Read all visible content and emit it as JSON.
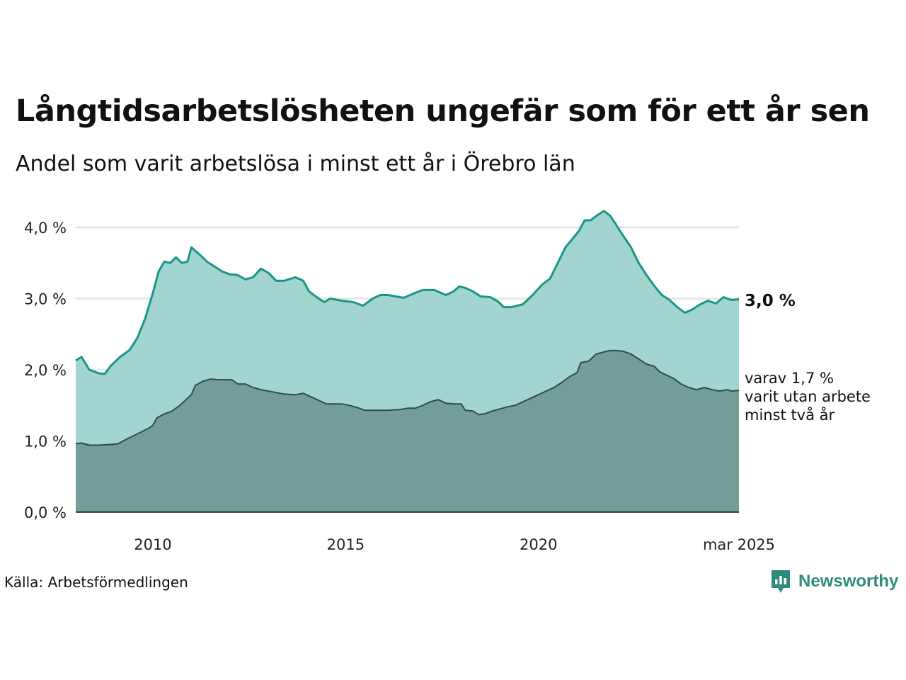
{
  "title": "Långtidsarbetslösheten ungefär som för ett år sen",
  "subtitle": "Andel som varit arbetslösa i minst ett år i Örebro län",
  "source": "Källa: Arbetsförmedlingen",
  "brand": {
    "name": "Newsworthy",
    "icon": "newsworthy-logo-icon",
    "color": "#2e8a7c"
  },
  "colors": {
    "total_line": "#1a9689",
    "total_fill": "#a2d5cf",
    "twoyear_line": "#2c4f49",
    "twoyear_fill": "#729e97",
    "grid": "#e3e3e3"
  },
  "chart_data": {
    "type": "area",
    "x_unit": "year",
    "ylim": [
      0,
      4.0
    ],
    "yticks": [
      "0,0 %",
      "1,0 %",
      "2,0 %",
      "3,0 %",
      "4,0 %"
    ],
    "xticks": [
      "2010",
      "2015",
      "2020",
      "mar 2025"
    ],
    "end_label": "3,0 %",
    "annotation": [
      "varav 1,7 %",
      "varit utan arbete",
      "minst två år"
    ],
    "grid": true,
    "series": [
      {
        "values": [
          [
            2008.0,
            2.13
          ],
          [
            2008.15,
            2.18
          ],
          [
            2008.35,
            2.0
          ],
          [
            2008.6,
            1.95
          ],
          [
            2008.75,
            1.94
          ],
          [
            2008.9,
            2.05
          ],
          [
            2009.15,
            2.18
          ],
          [
            2009.4,
            2.28
          ],
          [
            2009.6,
            2.45
          ],
          [
            2009.8,
            2.72
          ],
          [
            2010.0,
            3.08
          ],
          [
            2010.15,
            3.38
          ],
          [
            2010.3,
            3.52
          ],
          [
            2010.45,
            3.5
          ],
          [
            2010.6,
            3.58
          ],
          [
            2010.75,
            3.5
          ],
          [
            2010.9,
            3.52
          ],
          [
            2011.0,
            3.72
          ],
          [
            2011.25,
            3.6
          ],
          [
            2011.4,
            3.52
          ],
          [
            2011.6,
            3.45
          ],
          [
            2011.8,
            3.38
          ],
          [
            2012.0,
            3.34
          ],
          [
            2012.2,
            3.33
          ],
          [
            2012.4,
            3.27
          ],
          [
            2012.6,
            3.3
          ],
          [
            2012.8,
            3.42
          ],
          [
            2013.0,
            3.36
          ],
          [
            2013.2,
            3.25
          ],
          [
            2013.4,
            3.25
          ],
          [
            2013.7,
            3.3
          ],
          [
            2013.9,
            3.25
          ],
          [
            2014.05,
            3.1
          ],
          [
            2014.3,
            3.0
          ],
          [
            2014.45,
            2.95
          ],
          [
            2014.6,
            3.0
          ],
          [
            2014.9,
            2.97
          ],
          [
            2015.2,
            2.95
          ],
          [
            2015.45,
            2.9
          ],
          [
            2015.7,
            3.0
          ],
          [
            2015.9,
            3.05
          ],
          [
            2016.1,
            3.05
          ],
          [
            2016.3,
            3.03
          ],
          [
            2016.5,
            3.01
          ],
          [
            2016.8,
            3.08
          ],
          [
            2017.0,
            3.12
          ],
          [
            2017.3,
            3.12
          ],
          [
            2017.6,
            3.05
          ],
          [
            2017.8,
            3.1
          ],
          [
            2017.95,
            3.17
          ],
          [
            2018.1,
            3.15
          ],
          [
            2018.3,
            3.1
          ],
          [
            2018.5,
            3.03
          ],
          [
            2018.75,
            3.02
          ],
          [
            2018.95,
            2.96
          ],
          [
            2019.1,
            2.88
          ],
          [
            2019.3,
            2.88
          ],
          [
            2019.6,
            2.92
          ],
          [
            2019.85,
            3.05
          ],
          [
            2020.1,
            3.2
          ],
          [
            2020.3,
            3.28
          ],
          [
            2020.5,
            3.5
          ],
          [
            2020.7,
            3.72
          ],
          [
            2020.9,
            3.85
          ],
          [
            2021.05,
            3.95
          ],
          [
            2021.2,
            4.1
          ],
          [
            2021.35,
            4.1
          ],
          [
            2021.55,
            4.18
          ],
          [
            2021.7,
            4.23
          ],
          [
            2021.85,
            4.17
          ],
          [
            2022.0,
            4.05
          ],
          [
            2022.15,
            3.92
          ],
          [
            2022.4,
            3.72
          ],
          [
            2022.6,
            3.5
          ],
          [
            2022.8,
            3.33
          ],
          [
            2023.0,
            3.18
          ],
          [
            2023.2,
            3.05
          ],
          [
            2023.4,
            2.98
          ],
          [
            2023.6,
            2.88
          ],
          [
            2023.8,
            2.8
          ],
          [
            2024.0,
            2.85
          ],
          [
            2024.2,
            2.92
          ],
          [
            2024.4,
            2.97
          ],
          [
            2024.6,
            2.93
          ],
          [
            2024.8,
            3.02
          ],
          [
            2025.0,
            2.98
          ],
          [
            2025.2,
            2.99
          ]
        ]
      },
      {
        "values": [
          [
            2008.0,
            0.96
          ],
          [
            2008.15,
            0.97
          ],
          [
            2008.35,
            0.94
          ],
          [
            2008.6,
            0.94
          ],
          [
            2008.9,
            0.95
          ],
          [
            2009.1,
            0.96
          ],
          [
            2009.3,
            1.02
          ],
          [
            2009.6,
            1.1
          ],
          [
            2009.9,
            1.18
          ],
          [
            2010.0,
            1.22
          ],
          [
            2010.1,
            1.32
          ],
          [
            2010.3,
            1.38
          ],
          [
            2010.5,
            1.42
          ],
          [
            2010.7,
            1.5
          ],
          [
            2010.9,
            1.6
          ],
          [
            2011.0,
            1.65
          ],
          [
            2011.1,
            1.78
          ],
          [
            2011.3,
            1.84
          ],
          [
            2011.5,
            1.87
          ],
          [
            2011.7,
            1.86
          ],
          [
            2011.9,
            1.86
          ],
          [
            2012.05,
            1.86
          ],
          [
            2012.2,
            1.8
          ],
          [
            2012.4,
            1.8
          ],
          [
            2012.6,
            1.75
          ],
          [
            2012.8,
            1.72
          ],
          [
            2013.0,
            1.7
          ],
          [
            2013.2,
            1.68
          ],
          [
            2013.4,
            1.66
          ],
          [
            2013.7,
            1.65
          ],
          [
            2013.9,
            1.67
          ],
          [
            2014.1,
            1.62
          ],
          [
            2014.3,
            1.57
          ],
          [
            2014.5,
            1.52
          ],
          [
            2014.7,
            1.52
          ],
          [
            2014.9,
            1.52
          ],
          [
            2015.1,
            1.5
          ],
          [
            2015.3,
            1.47
          ],
          [
            2015.5,
            1.43
          ],
          [
            2015.8,
            1.43
          ],
          [
            2016.1,
            1.43
          ],
          [
            2016.4,
            1.44
          ],
          [
            2016.6,
            1.46
          ],
          [
            2016.8,
            1.46
          ],
          [
            2017.0,
            1.5
          ],
          [
            2017.2,
            1.55
          ],
          [
            2017.4,
            1.58
          ],
          [
            2017.6,
            1.53
          ],
          [
            2017.8,
            1.52
          ],
          [
            2018.0,
            1.52
          ],
          [
            2018.1,
            1.43
          ],
          [
            2018.3,
            1.42
          ],
          [
            2018.45,
            1.37
          ],
          [
            2018.6,
            1.38
          ],
          [
            2018.8,
            1.42
          ],
          [
            2019.0,
            1.45
          ],
          [
            2019.2,
            1.48
          ],
          [
            2019.4,
            1.5
          ],
          [
            2019.6,
            1.55
          ],
          [
            2019.8,
            1.6
          ],
          [
            2020.0,
            1.65
          ],
          [
            2020.2,
            1.7
          ],
          [
            2020.4,
            1.75
          ],
          [
            2020.6,
            1.82
          ],
          [
            2020.8,
            1.9
          ],
          [
            2021.0,
            1.96
          ],
          [
            2021.1,
            2.1
          ],
          [
            2021.3,
            2.12
          ],
          [
            2021.5,
            2.22
          ],
          [
            2021.7,
            2.25
          ],
          [
            2021.85,
            2.27
          ],
          [
            2022.0,
            2.27
          ],
          [
            2022.2,
            2.26
          ],
          [
            2022.4,
            2.22
          ],
          [
            2022.6,
            2.15
          ],
          [
            2022.8,
            2.08
          ],
          [
            2023.0,
            2.05
          ],
          [
            2023.15,
            1.97
          ],
          [
            2023.3,
            1.93
          ],
          [
            2023.5,
            1.88
          ],
          [
            2023.7,
            1.8
          ],
          [
            2023.9,
            1.75
          ],
          [
            2024.1,
            1.72
          ],
          [
            2024.3,
            1.75
          ],
          [
            2024.5,
            1.72
          ],
          [
            2024.7,
            1.7
          ],
          [
            2024.9,
            1.72
          ],
          [
            2025.0,
            1.7
          ],
          [
            2025.2,
            1.71
          ]
        ]
      }
    ]
  }
}
